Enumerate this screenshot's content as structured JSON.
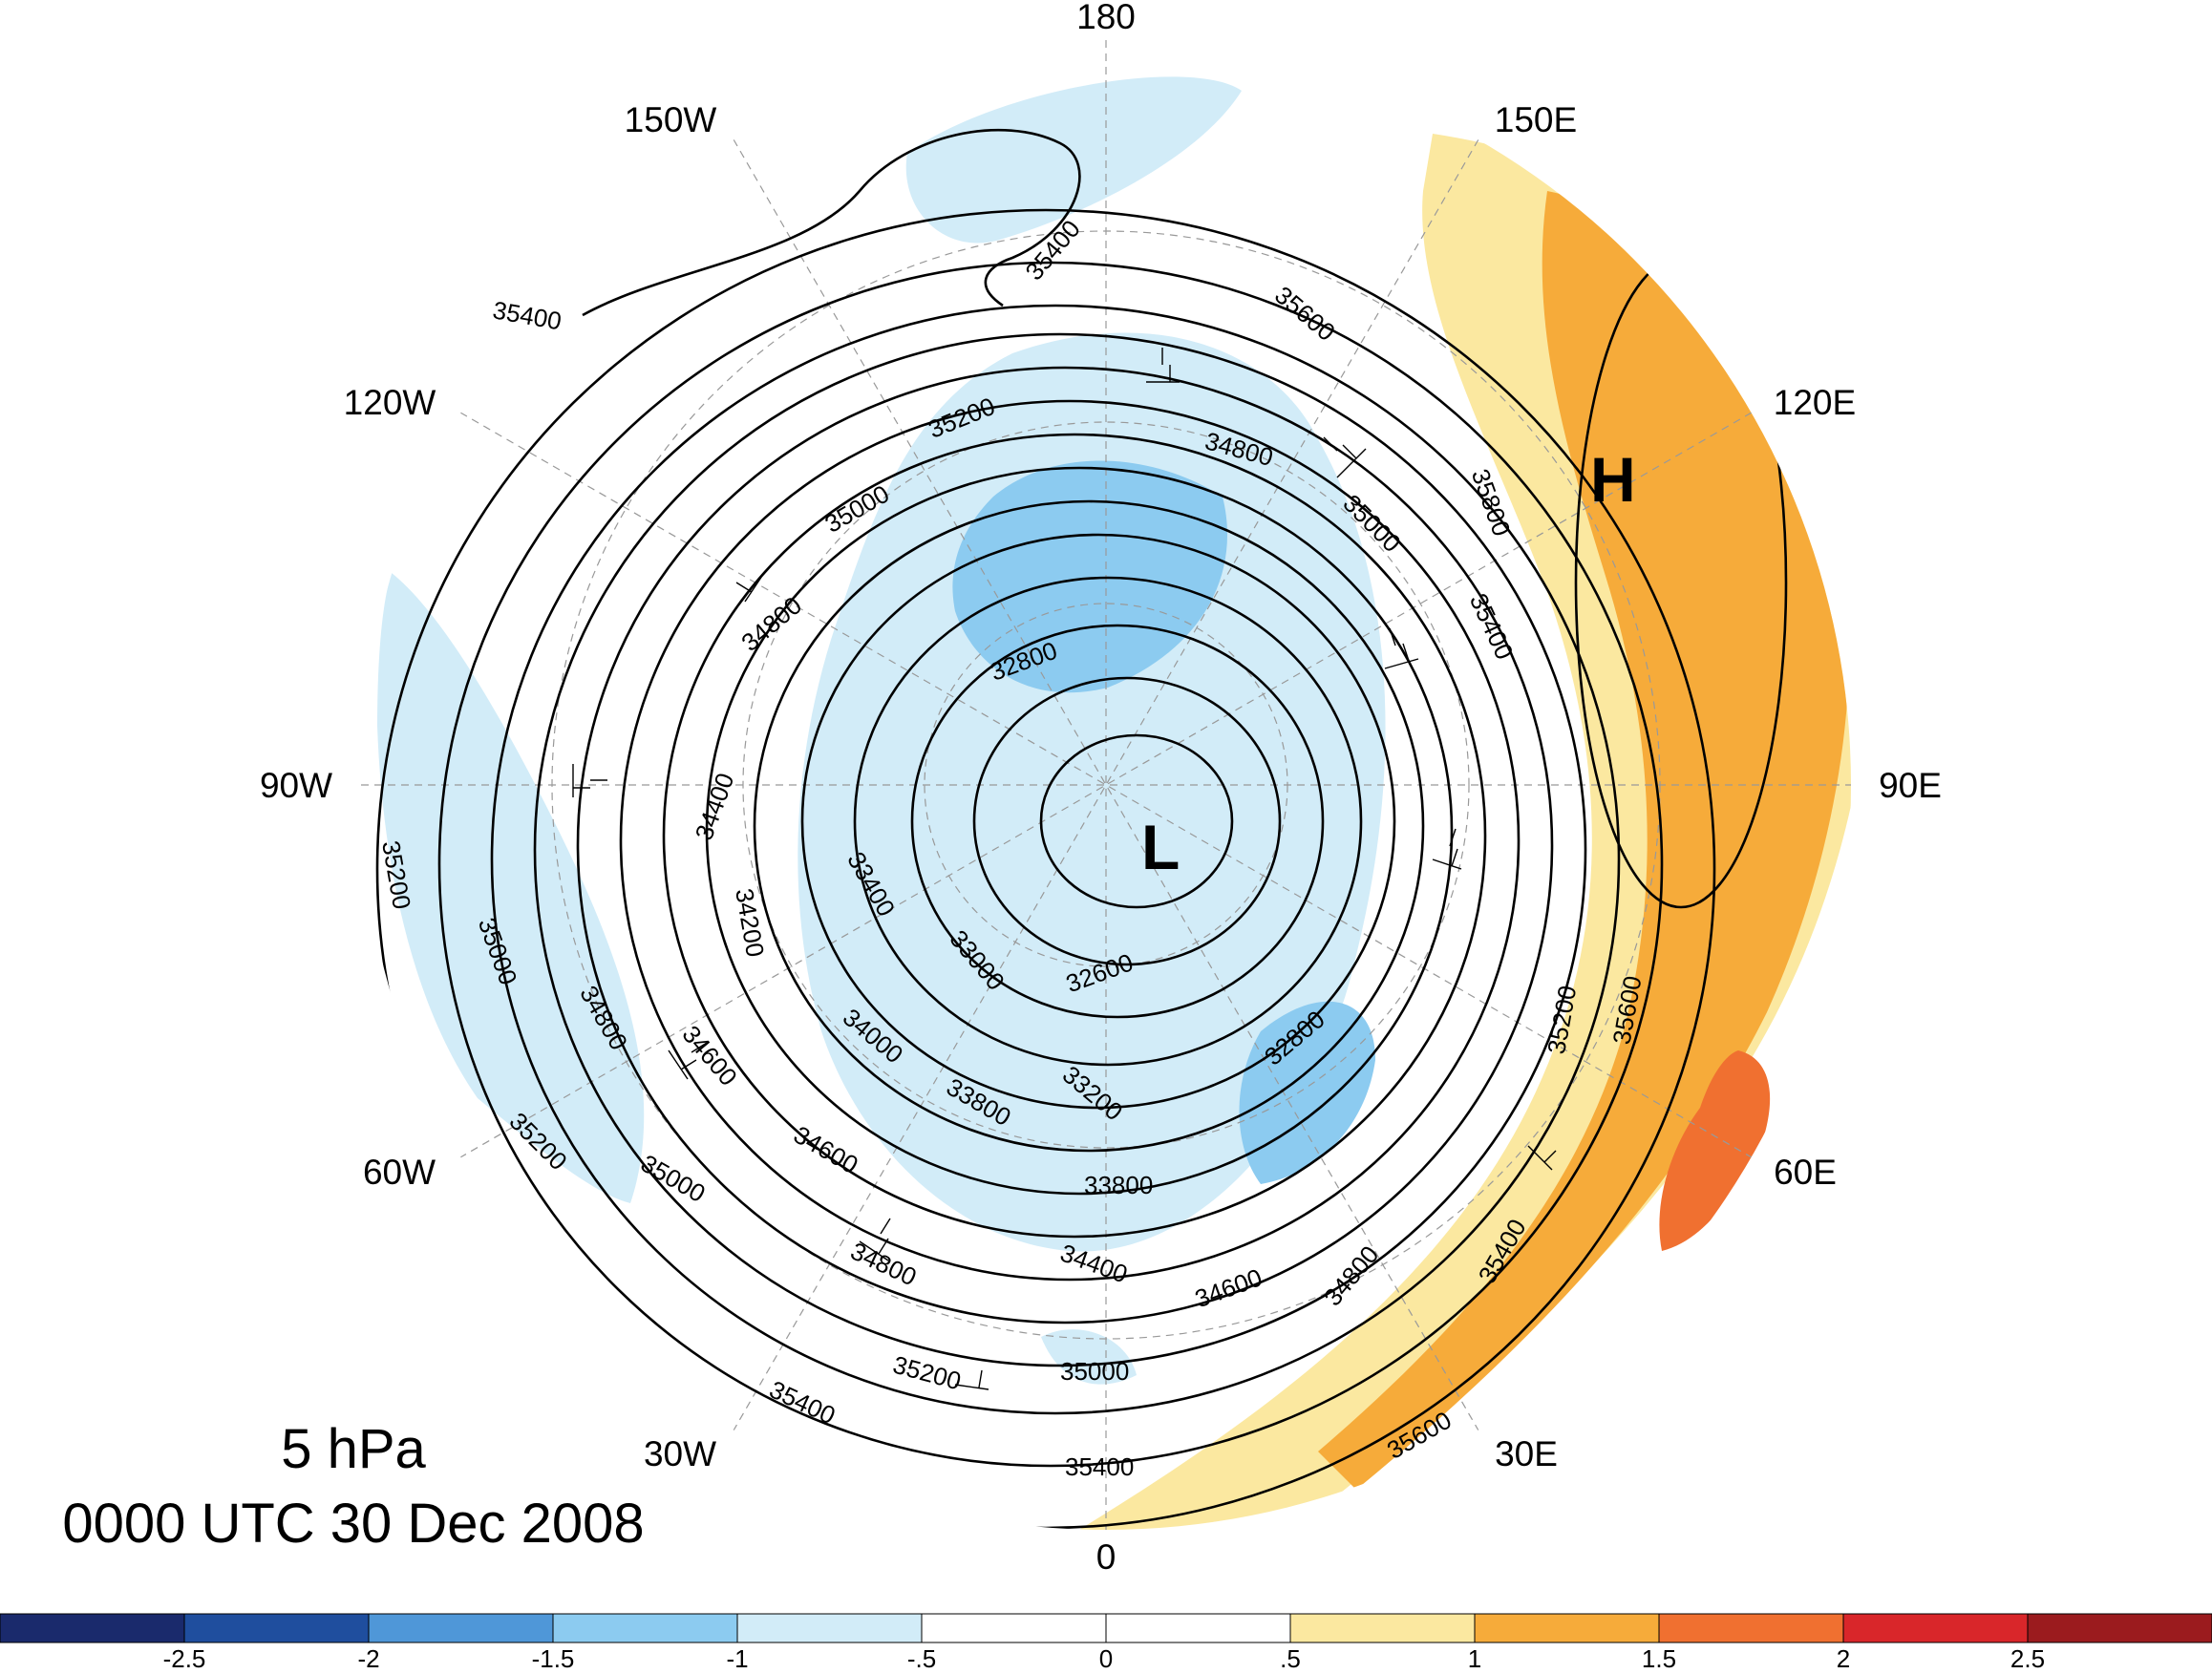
{
  "title": {
    "level": "5 hPa",
    "time": "0000 UTC 30 Dec 2008"
  },
  "longitude_labels": [
    {
      "text": "180",
      "angle": 180
    },
    {
      "text": "150E",
      "angle": 150
    },
    {
      "text": "120E",
      "angle": 120
    },
    {
      "text": "90E",
      "angle": 90
    },
    {
      "text": "60E",
      "angle": 60
    },
    {
      "text": "30E",
      "angle": 30
    },
    {
      "text": "0",
      "angle": 0
    },
    {
      "text": "30W",
      "angle": -30
    },
    {
      "text": "60W",
      "angle": -60
    },
    {
      "text": "90W",
      "angle": -90
    },
    {
      "text": "120W",
      "angle": -120
    },
    {
      "text": "150W",
      "angle": -150
    }
  ],
  "centers": {
    "low": "L",
    "high": "H"
  },
  "contour_labels": [
    "35400",
    "35400",
    "35600",
    "35200",
    "34800",
    "35000",
    "35800",
    "35000",
    "34800",
    "35400",
    "32800",
    "35200",
    "34400",
    "34200",
    "33400",
    "33000",
    "32600",
    "35000",
    "34800",
    "34600",
    "34000",
    "33800",
    "33200",
    "32800",
    "35200",
    "35200",
    "35600",
    "35400",
    "35000",
    "34600",
    "34800",
    "34600",
    "34400",
    "34800",
    "33800",
    "35000",
    "35200",
    "35400",
    "35400",
    "35600"
  ],
  "colorbar": {
    "colors": [
      "#1a2a6c",
      "#1f4e9e",
      "#4f97d8",
      "#8ccbf0",
      "#d2ecf8",
      "#ffffff",
      "#ffffff",
      "#fbe8a0",
      "#f6ab3a",
      "#f07030",
      "#d9262a",
      "#9b1b1e"
    ],
    "tick_labels": [
      "-2.5",
      "-2",
      "-1.5",
      "-1",
      "-.5",
      "0",
      ".5",
      "1",
      "1.5",
      "2",
      "2.5"
    ]
  }
}
